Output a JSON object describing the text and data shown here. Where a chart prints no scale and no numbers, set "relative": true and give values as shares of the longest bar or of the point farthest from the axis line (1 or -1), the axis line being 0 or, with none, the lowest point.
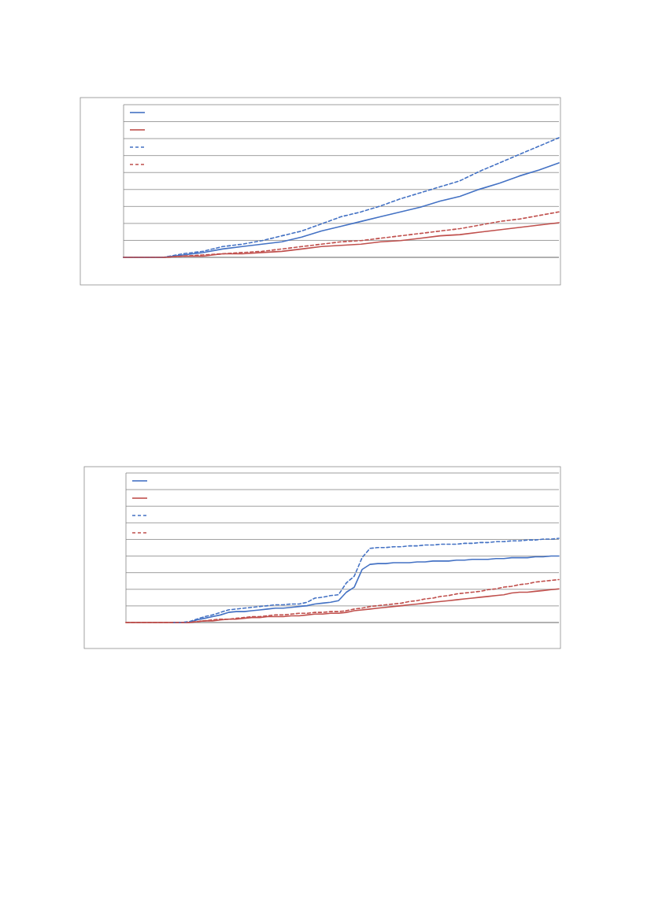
{
  "chart_data": [
    {
      "type": "line",
      "relative": true,
      "grid": "y",
      "categories": [
        null,
        null,
        null,
        null,
        null,
        null,
        null,
        null,
        null,
        null,
        null,
        null,
        null,
        null,
        null,
        null,
        null,
        null,
        null,
        null,
        null,
        null,
        null
      ],
      "series": [
        {
          "color": "#4472c4",
          "line_style": "solid",
          "values": [
            0,
            0,
            0,
            0.02,
            0.04,
            0.07,
            0.09,
            0.11,
            0.13,
            0.17,
            0.22,
            0.26,
            0.3,
            0.34,
            0.38,
            0.42,
            0.47,
            0.51,
            0.57,
            0.62,
            0.68,
            0.73,
            0.79
          ]
        },
        {
          "color": "#c0504d",
          "line_style": "solid",
          "values": [
            0,
            0,
            0,
            0.01,
            0.01,
            0.03,
            0.03,
            0.04,
            0.05,
            0.07,
            0.09,
            0.1,
            0.11,
            0.13,
            0.14,
            0.16,
            0.18,
            0.19,
            0.21,
            0.23,
            0.25,
            0.27,
            0.29
          ]
        },
        {
          "color": "#4472c4",
          "line_style": "dashed",
          "values": [
            0,
            0,
            0,
            0.03,
            0.05,
            0.09,
            0.11,
            0.14,
            0.18,
            0.22,
            0.28,
            0.34,
            0.38,
            0.43,
            0.49,
            0.54,
            0.59,
            0.64,
            0.72,
            0.79,
            0.86,
            0.93,
            1
          ]
        },
        {
          "color": "#c0504d",
          "line_style": "dashed",
          "values": [
            0,
            0,
            0,
            0.01,
            0.02,
            0.03,
            0.04,
            0.05,
            0.07,
            0.09,
            0.11,
            0.13,
            0.14,
            0.16,
            0.18,
            0.2,
            0.22,
            0.24,
            0.27,
            0.3,
            0.32,
            0.35,
            0.38
          ]
        }
      ]
    },
    {
      "type": "line",
      "relative": true,
      "grid": "y",
      "categories": [
        null,
        null,
        null,
        null,
        null,
        null,
        null,
        null,
        null,
        null,
        null,
        null,
        null,
        null,
        null,
        null,
        null,
        null,
        null,
        null,
        null,
        null,
        null,
        null,
        null,
        null,
        null,
        null,
        null,
        null,
        null,
        null,
        null,
        null,
        null,
        null,
        null,
        null,
        null,
        null,
        null,
        null,
        null,
        null,
        null,
        null,
        null,
        null,
        null,
        null,
        null,
        null,
        null,
        null,
        null,
        null
      ],
      "series": [
        {
          "color": "#4472c4",
          "line_style": "solid",
          "values": [
            null,
            null,
            null,
            null,
            null,
            null,
            0,
            0,
            0,
            0.03,
            0.05,
            0.07,
            0.09,
            0.12,
            0.13,
            0.13,
            0.14,
            0.15,
            0.16,
            0.17,
            0.17,
            0.18,
            0.19,
            0.2,
            0.22,
            0.23,
            0.24,
            0.26,
            0.36,
            0.42,
            0.63,
            0.69,
            0.7,
            0.7,
            0.71,
            0.71,
            0.71,
            0.72,
            0.72,
            0.73,
            0.73,
            0.73,
            0.74,
            0.74,
            0.75,
            0.75,
            0.75,
            0.76,
            0.76,
            0.77,
            0.77,
            0.77,
            0.78,
            0.78,
            0.79,
            0.79
          ]
        },
        {
          "color": "#c0504d",
          "line_style": "solid",
          "values": [
            0,
            0,
            0,
            0,
            0,
            0,
            0,
            0,
            0,
            0.01,
            0.02,
            0.02,
            0.03,
            0.04,
            0.04,
            0.05,
            0.06,
            0.06,
            0.07,
            0.07,
            0.07,
            0.08,
            0.08,
            0.09,
            0.1,
            0.1,
            0.11,
            0.11,
            0.12,
            0.14,
            0.15,
            0.16,
            0.17,
            0.18,
            0.19,
            0.2,
            0.21,
            0.22,
            0.23,
            0.24,
            0.25,
            0.26,
            0.27,
            0.28,
            0.29,
            0.3,
            0.31,
            0.32,
            0.33,
            0.35,
            0.36,
            0.36,
            0.37,
            0.38,
            0.39,
            0.4
          ]
        },
        {
          "color": "#4472c4",
          "line_style": "dashed",
          "values": [
            null,
            null,
            null,
            null,
            null,
            null,
            0,
            0,
            0.01,
            0.04,
            0.07,
            0.09,
            0.12,
            0.15,
            0.16,
            0.17,
            0.18,
            0.19,
            0.2,
            0.21,
            0.21,
            0.22,
            0.22,
            0.24,
            0.29,
            0.3,
            0.32,
            0.33,
            0.47,
            0.55,
            0.77,
            0.88,
            0.89,
            0.89,
            0.9,
            0.9,
            0.91,
            0.91,
            0.92,
            0.92,
            0.93,
            0.93,
            0.93,
            0.94,
            0.94,
            0.95,
            0.95,
            0.96,
            0.96,
            0.97,
            0.97,
            0.98,
            0.98,
            0.99,
            0.99,
            1
          ]
        },
        {
          "color": "#c0504d",
          "line_style": "dashed",
          "values": [
            0,
            0,
            0,
            0,
            0,
            0,
            0,
            0,
            0,
            0.01,
            0.02,
            0.03,
            0.04,
            0.04,
            0.05,
            0.06,
            0.07,
            0.07,
            0.08,
            0.09,
            0.09,
            0.1,
            0.11,
            0.11,
            0.12,
            0.12,
            0.13,
            0.13,
            0.14,
            0.16,
            0.17,
            0.19,
            0.2,
            0.21,
            0.22,
            0.23,
            0.25,
            0.26,
            0.28,
            0.29,
            0.31,
            0.32,
            0.34,
            0.35,
            0.36,
            0.37,
            0.39,
            0.4,
            0.42,
            0.43,
            0.45,
            0.46,
            0.48,
            0.49,
            0.5,
            0.51
          ]
        }
      ]
    }
  ]
}
